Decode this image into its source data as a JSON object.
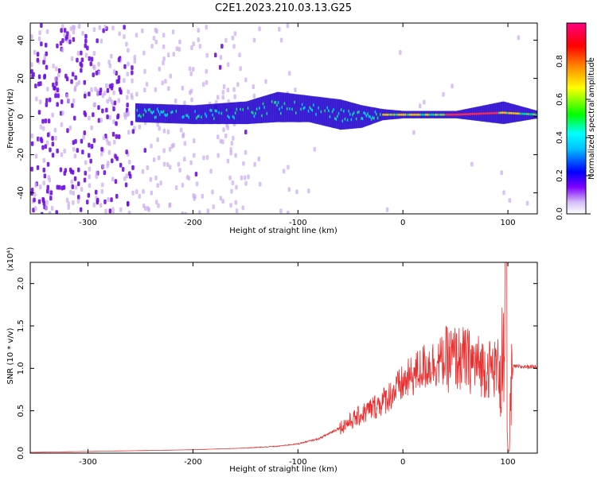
{
  "title": "C2E1.2023.210.03.13.G25",
  "colorbar": {
    "label": "Normalized spectral amplitude",
    "range": [
      0.0,
      1.0
    ],
    "ticks": [
      "0.0",
      "0.2",
      "0.4",
      "0.6",
      "0.8"
    ],
    "tick_values": [
      0.0,
      0.2,
      0.4,
      0.6,
      0.8
    ],
    "colors": [
      "#ffffff",
      "#8000ff",
      "#0000ff",
      "#00ffff",
      "#00ff00",
      "#ffff00",
      "#ff8000",
      "#ff0000",
      "#ff0080"
    ]
  },
  "colors": {
    "snr_line": "#e83030",
    "spectrogram_low": "#c9a8f0",
    "spectrogram_mid": "#7010e0",
    "signal_core": "#00e0ff"
  },
  "chart_data": [
    {
      "type": "heatmap",
      "xlabel": "Height of straight line (km)",
      "ylabel": "Frequency (Hz)",
      "xlim": [
        -355,
        128
      ],
      "ylim": [
        -51,
        49
      ],
      "xticks": [
        -300,
        -200,
        -100,
        0,
        100
      ],
      "xtick_labels": [
        "-300",
        "-200",
        "-100",
        "0",
        "100"
      ],
      "yticks": [
        -40,
        -20,
        0,
        20,
        40
      ],
      "ytick_labels": [
        "-40",
        "-20",
        "0",
        "20",
        "40"
      ],
      "signal_band": [
        {
          "x": -255,
          "center": 2,
          "half_width": 5
        },
        {
          "x": -200,
          "center": 1,
          "half_width": 5
        },
        {
          "x": -150,
          "center": 2,
          "half_width": 6
        },
        {
          "x": -120,
          "center": 5,
          "half_width": 8
        },
        {
          "x": -90,
          "center": 4,
          "half_width": 7
        },
        {
          "x": -60,
          "center": 1,
          "half_width": 8
        },
        {
          "x": -40,
          "center": 0,
          "half_width": 6
        },
        {
          "x": -20,
          "center": 1,
          "half_width": 3
        },
        {
          "x": 0,
          "center": 1,
          "half_width": 2
        },
        {
          "x": 50,
          "center": 1,
          "half_width": 2
        },
        {
          "x": 95,
          "center": 2,
          "half_width": 6
        },
        {
          "x": 128,
          "center": 1,
          "half_width": 2
        }
      ]
    },
    {
      "type": "line",
      "xlabel": "Height of straight line (km)",
      "ylabel": "SNR (10 * v/v)",
      "y_multiplier": "(x10⁴)",
      "xlim": [
        -355,
        128
      ],
      "ylim": [
        0.0,
        2.25
      ],
      "xticks": [
        -300,
        -200,
        -100,
        0,
        100
      ],
      "xtick_labels": [
        "-300",
        "-200",
        "-100",
        "0",
        "100"
      ],
      "yticks": [
        0.0,
        0.5,
        1.0,
        1.5,
        2.0
      ],
      "ytick_labels": [
        "0.0",
        "0.5",
        "1.0",
        "1.5",
        "2.0"
      ],
      "series": [
        {
          "x": [
            -355,
            -300,
            -250,
            -200,
            -150,
            -120,
            -100,
            -80,
            -60,
            -40,
            -20,
            0,
            20,
            40,
            50,
            60,
            70,
            80,
            90,
            95,
            100,
            105,
            110,
            128
          ],
          "values": [
            0.01,
            0.02,
            0.03,
            0.04,
            0.06,
            0.08,
            0.11,
            0.17,
            0.3,
            0.45,
            0.6,
            0.82,
            1.02,
            1.1,
            1.12,
            1.1,
            1.05,
            1.0,
            1.0,
            1.1,
            0.05,
            1.02,
            1.02,
            1.02
          ]
        }
      ]
    }
  ]
}
